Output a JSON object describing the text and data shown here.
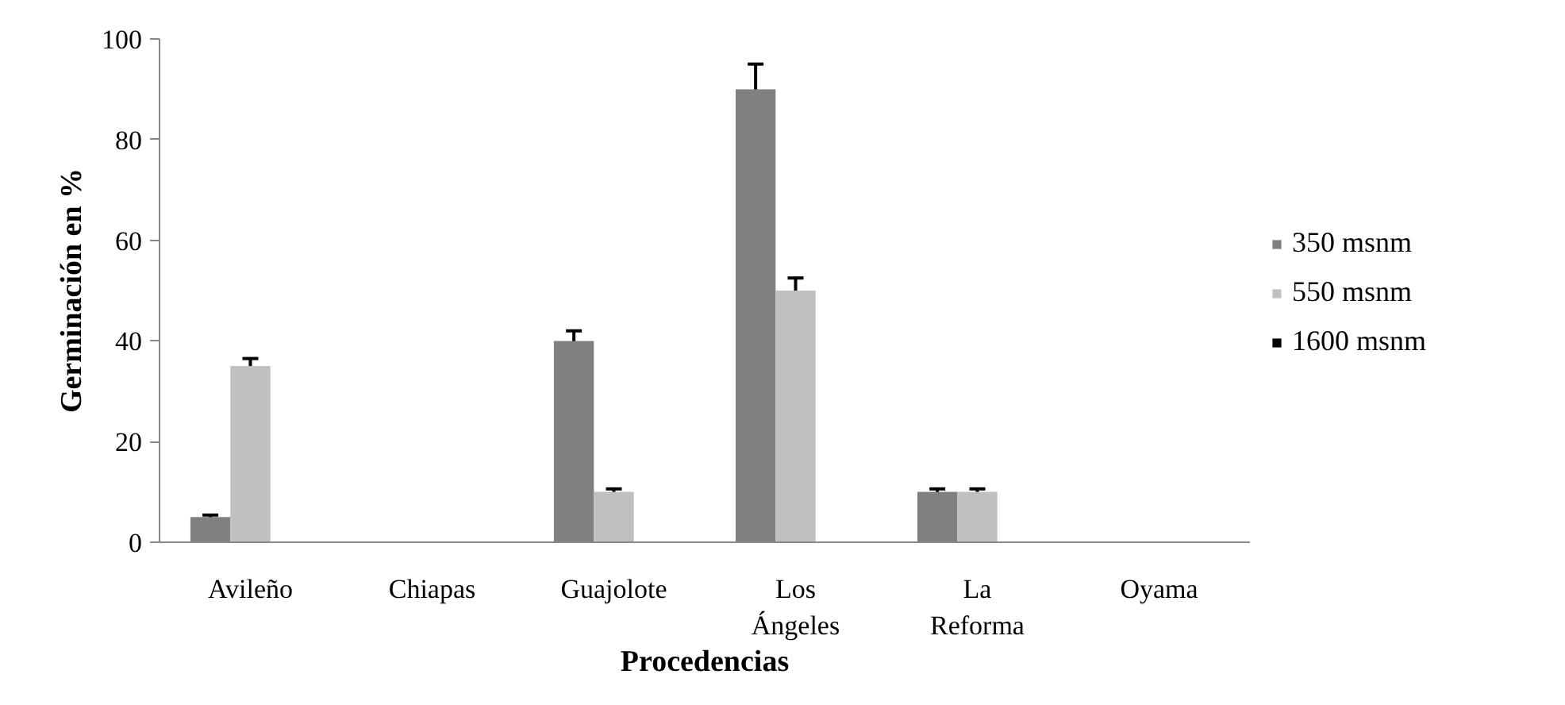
{
  "chart_data": {
    "type": "bar",
    "xlabel": "Procedencias",
    "ylabel": "Germinación en %",
    "categories": [
      "Avileño",
      "Chiapas",
      "Guajolote",
      "Los\nÁngeles",
      "La\nReforma",
      "Oyama"
    ],
    "series": [
      {
        "name": "350 msnm",
        "color": "#808080",
        "values": [
          5,
          0,
          40,
          90,
          10,
          0
        ],
        "errors": [
          0.4,
          null,
          2,
          5,
          0.6,
          null
        ]
      },
      {
        "name": "550 msnm",
        "color": "#c0c0c0",
        "values": [
          35,
          0,
          10,
          50,
          10,
          0
        ],
        "errors": [
          1.5,
          null,
          0.6,
          2.5,
          0.6,
          null
        ]
      },
      {
        "name": "1600 msnm",
        "color": "#000000",
        "values": [
          0,
          0,
          0,
          0,
          0,
          0
        ]
      }
    ],
    "ylim": [
      0,
      100
    ],
    "yticks": [
      0,
      20,
      40,
      60,
      80,
      100
    ],
    "grid": false,
    "legend": "right"
  }
}
